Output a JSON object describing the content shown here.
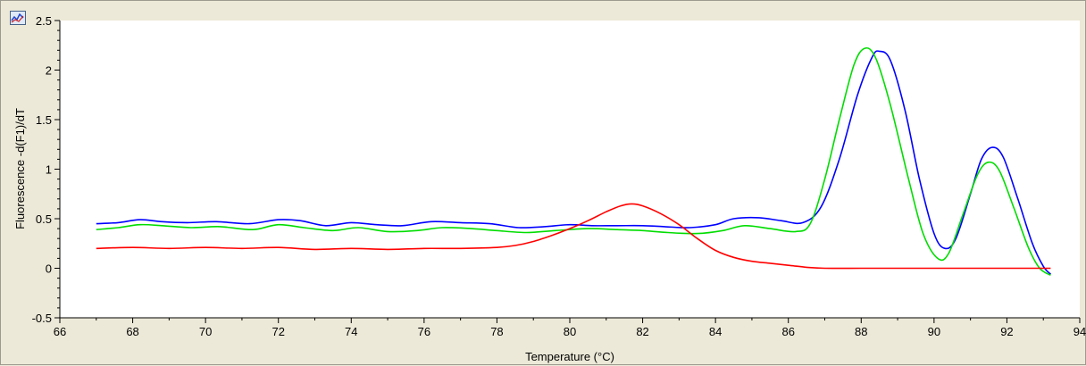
{
  "chart_data": {
    "type": "line",
    "title": "",
    "xlabel": "Temperature (°C)",
    "ylabel": "Fluorescence -d(F1)/dT",
    "xlim": [
      66,
      94
    ],
    "ylim": [
      -0.5,
      2.5
    ],
    "x_ticks": [
      66,
      68,
      70,
      72,
      74,
      76,
      78,
      80,
      82,
      84,
      86,
      88,
      90,
      92,
      94
    ],
    "y_ticks": [
      -0.5,
      0,
      0.5,
      1,
      1.5,
      2,
      2.5
    ],
    "y_tick_labels": [
      "-0.5",
      "0",
      "0.5",
      "1",
      "1.5",
      "2",
      "2.5"
    ],
    "grid": false,
    "legend": "none",
    "series": [
      {
        "color": "#0000ff",
        "points": [
          [
            67,
            0.45
          ],
          [
            67.6,
            0.46
          ],
          [
            68.2,
            0.49
          ],
          [
            68.8,
            0.47
          ],
          [
            69.5,
            0.46
          ],
          [
            70.3,
            0.47
          ],
          [
            71.2,
            0.45
          ],
          [
            72,
            0.49
          ],
          [
            72.6,
            0.48
          ],
          [
            73.3,
            0.43
          ],
          [
            74,
            0.46
          ],
          [
            74.7,
            0.44
          ],
          [
            75.4,
            0.43
          ],
          [
            76.2,
            0.47
          ],
          [
            77,
            0.46
          ],
          [
            77.8,
            0.45
          ],
          [
            78.6,
            0.41
          ],
          [
            79.3,
            0.42
          ],
          [
            80,
            0.44
          ],
          [
            80.6,
            0.43
          ],
          [
            81.3,
            0.43
          ],
          [
            82,
            0.43
          ],
          [
            82.6,
            0.42
          ],
          [
            83.3,
            0.41
          ],
          [
            84,
            0.44
          ],
          [
            84.5,
            0.5
          ],
          [
            85.2,
            0.51
          ],
          [
            85.8,
            0.48
          ],
          [
            86.4,
            0.46
          ],
          [
            86.9,
            0.62
          ],
          [
            87.4,
            1.1
          ],
          [
            87.9,
            1.75
          ],
          [
            88.3,
            2.13
          ],
          [
            88.5,
            2.19
          ],
          [
            88.8,
            2.1
          ],
          [
            89.2,
            1.6
          ],
          [
            89.6,
            0.9
          ],
          [
            90,
            0.35
          ],
          [
            90.3,
            0.2
          ],
          [
            90.6,
            0.3
          ],
          [
            91,
            0.75
          ],
          [
            91.3,
            1.1
          ],
          [
            91.6,
            1.22
          ],
          [
            91.9,
            1.12
          ],
          [
            92.3,
            0.7
          ],
          [
            92.7,
            0.25
          ],
          [
            93,
            0.02
          ],
          [
            93.2,
            -0.06
          ]
        ]
      },
      {
        "color": "#00dd00",
        "points": [
          [
            67,
            0.39
          ],
          [
            67.6,
            0.41
          ],
          [
            68.2,
            0.44
          ],
          [
            68.8,
            0.43
          ],
          [
            69.6,
            0.41
          ],
          [
            70.4,
            0.42
          ],
          [
            71.3,
            0.39
          ],
          [
            72,
            0.44
          ],
          [
            72.7,
            0.41
          ],
          [
            73.5,
            0.38
          ],
          [
            74.2,
            0.41
          ],
          [
            75,
            0.37
          ],
          [
            75.8,
            0.38
          ],
          [
            76.5,
            0.41
          ],
          [
            77.3,
            0.4
          ],
          [
            78,
            0.38
          ],
          [
            78.8,
            0.36
          ],
          [
            79.6,
            0.38
          ],
          [
            80.5,
            0.4
          ],
          [
            81.3,
            0.39
          ],
          [
            82,
            0.38
          ],
          [
            82.7,
            0.36
          ],
          [
            83.5,
            0.35
          ],
          [
            84.2,
            0.38
          ],
          [
            84.8,
            0.43
          ],
          [
            85.5,
            0.4
          ],
          [
            86.2,
            0.37
          ],
          [
            86.6,
            0.45
          ],
          [
            87,
            0.9
          ],
          [
            87.4,
            1.5
          ],
          [
            87.8,
            2.05
          ],
          [
            88.1,
            2.22
          ],
          [
            88.4,
            2.12
          ],
          [
            88.8,
            1.65
          ],
          [
            89.3,
            0.9
          ],
          [
            89.7,
            0.35
          ],
          [
            90.1,
            0.1
          ],
          [
            90.4,
            0.15
          ],
          [
            90.8,
            0.55
          ],
          [
            91.2,
            0.95
          ],
          [
            91.5,
            1.07
          ],
          [
            91.8,
            0.98
          ],
          [
            92.2,
            0.6
          ],
          [
            92.6,
            0.2
          ],
          [
            92.9,
            0.0
          ],
          [
            93.2,
            -0.07
          ]
        ]
      },
      {
        "color": "#ff0000",
        "points": [
          [
            67,
            0.2
          ],
          [
            68,
            0.21
          ],
          [
            69,
            0.2
          ],
          [
            70,
            0.21
          ],
          [
            71,
            0.2
          ],
          [
            72,
            0.21
          ],
          [
            73,
            0.19
          ],
          [
            74,
            0.2
          ],
          [
            75,
            0.19
          ],
          [
            76,
            0.2
          ],
          [
            77,
            0.2
          ],
          [
            78,
            0.21
          ],
          [
            78.5,
            0.23
          ],
          [
            79,
            0.27
          ],
          [
            79.5,
            0.33
          ],
          [
            80,
            0.4
          ],
          [
            80.5,
            0.48
          ],
          [
            81,
            0.57
          ],
          [
            81.4,
            0.63
          ],
          [
            81.7,
            0.65
          ],
          [
            82,
            0.63
          ],
          [
            82.5,
            0.55
          ],
          [
            83,
            0.44
          ],
          [
            83.5,
            0.3
          ],
          [
            84,
            0.18
          ],
          [
            84.5,
            0.11
          ],
          [
            85,
            0.07
          ],
          [
            85.5,
            0.05
          ],
          [
            86,
            0.03
          ],
          [
            86.5,
            0.01
          ],
          [
            87,
            0.0
          ],
          [
            88,
            0.0
          ],
          [
            89,
            0.0
          ],
          [
            90,
            0.0
          ],
          [
            91,
            0.0
          ],
          [
            92,
            0.0
          ],
          [
            93,
            0.0
          ],
          [
            93.2,
            0.0
          ]
        ]
      }
    ]
  }
}
